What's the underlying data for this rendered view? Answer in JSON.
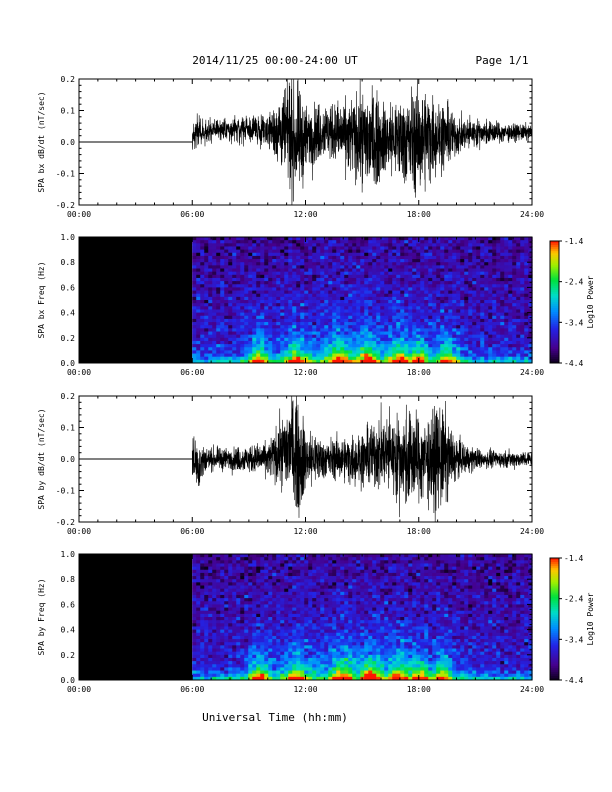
{
  "header": {
    "title": "2014/11/25  00:00-24:00 UT",
    "page": "Page 1/1"
  },
  "footer": {
    "xlabel": "Universal Time (hh:mm)"
  },
  "colorbar": {
    "label": "Log10 Power",
    "ticks": [
      "-1.4",
      "-2.4",
      "-3.4",
      "-4.4"
    ],
    "range": [
      -4.4,
      -1.4
    ]
  },
  "chart_data": [
    {
      "type": "line",
      "ylabel": "SPA bx dB/dt (nT/sec)",
      "xlim": [
        0,
        24
      ],
      "ylim": [
        -0.2,
        0.2
      ],
      "xticks": [
        "00:00",
        "06:00",
        "12:00",
        "18:00",
        "24:00"
      ],
      "yticks": [
        "0.2",
        "0.1",
        "0.0",
        "-0.1",
        "-0.2"
      ],
      "data_start_hour": 6,
      "envelope": {
        "hours": [
          6,
          6.5,
          7,
          8,
          9,
          10,
          10.8,
          11.2,
          11.6,
          12,
          13,
          14,
          15,
          15.5,
          16,
          17,
          18,
          18.5,
          19,
          19.5,
          20,
          21,
          22,
          23,
          24
        ],
        "amplitude": [
          0.06,
          0.05,
          0.04,
          0.04,
          0.05,
          0.06,
          0.15,
          0.2,
          0.2,
          0.12,
          0.1,
          0.12,
          0.17,
          0.2,
          0.13,
          0.15,
          0.2,
          0.17,
          0.13,
          0.12,
          0.07,
          0.05,
          0.04,
          0.03,
          0.03
        ],
        "offset": [
          0.02,
          0.03,
          0.04,
          0.04,
          0.04,
          0.04,
          0.03,
          0.02,
          0.0,
          0.01,
          0.04,
          0.02,
          0.01,
          0.0,
          0.01,
          0.01,
          0.0,
          0.02,
          0.02,
          0.02,
          0.02,
          0.03,
          0.03,
          0.03,
          0.03
        ]
      }
    },
    {
      "type": "heatmap",
      "ylabel": "SPA bx Freq (Hz)",
      "xlim": [
        0,
        24
      ],
      "ylim": [
        0,
        1
      ],
      "xticks": [
        "00:00",
        "06:00",
        "12:00",
        "18:00",
        "24:00"
      ],
      "yticks": [
        "1.0",
        "0.8",
        "0.6",
        "0.4",
        "0.2",
        "0.0"
      ],
      "data_start_hour": 6,
      "peak_hours": [
        9.5,
        11.5,
        13.8,
        15.3,
        17.0,
        18.0,
        19.5
      ]
    },
    {
      "type": "line",
      "ylabel": "SPA by dB/dt (nT/sec)",
      "xlim": [
        0,
        24
      ],
      "ylim": [
        -0.2,
        0.2
      ],
      "xticks": [
        "00:00",
        "06:00",
        "12:00",
        "18:00",
        "24:00"
      ],
      "yticks": [
        "0.2",
        "0.1",
        "0.0",
        "-0.1",
        "-0.2"
      ],
      "data_start_hour": 6,
      "envelope": {
        "hours": [
          6,
          6.3,
          6.8,
          8,
          9,
          10,
          10.8,
          11.3,
          11.7,
          12,
          13,
          14,
          15,
          15.8,
          16.5,
          17,
          17.5,
          18,
          18.5,
          19.2,
          20,
          21,
          22,
          23,
          24
        ],
        "amplitude": [
          0.08,
          0.1,
          0.04,
          0.04,
          0.05,
          0.06,
          0.13,
          0.2,
          0.2,
          0.12,
          0.07,
          0.08,
          0.1,
          0.13,
          0.14,
          0.16,
          0.18,
          0.15,
          0.16,
          0.2,
          0.07,
          0.04,
          0.03,
          0.03,
          0.03
        ],
        "offset": [
          0.0,
          -0.02,
          0.0,
          0.0,
          0.0,
          0.0,
          0.02,
          0.04,
          0.0,
          0.0,
          0.0,
          0.0,
          0.0,
          0.02,
          0.02,
          0.0,
          0.0,
          0.0,
          0.0,
          0.0,
          0.0,
          0.0,
          0.0,
          0.0,
          0.0
        ]
      }
    },
    {
      "type": "heatmap",
      "ylabel": "SPA by Freq (Hz)",
      "xlim": [
        0,
        24
      ],
      "ylim": [
        0,
        1
      ],
      "xticks": [
        "00:00",
        "06:00",
        "12:00",
        "18:00",
        "24:00"
      ],
      "yticks": [
        "1.0",
        "0.8",
        "0.6",
        "0.4",
        "0.2",
        "0.0"
      ],
      "data_start_hour": 6,
      "peak_hours": [
        9.5,
        11.5,
        14.0,
        15.5,
        17.0,
        18.0,
        19.2
      ]
    }
  ]
}
